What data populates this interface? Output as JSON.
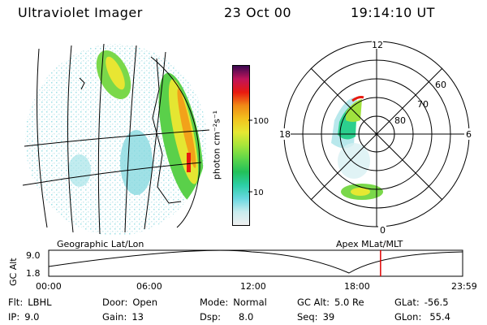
{
  "header": {
    "title": "Ultraviolet Imager",
    "date": "23 Oct 00",
    "time": "19:14:10 UT"
  },
  "colorbar": {
    "label": "photon cm⁻²s⁻¹",
    "ticks": [
      "100",
      "10"
    ],
    "colors": [
      "#f0f0f0",
      "#c8ecee",
      "#68d8e0",
      "#2ccfa6",
      "#22c05a",
      "#5ed64a",
      "#a6e63a",
      "#e6e832",
      "#f2c21e",
      "#f08a16",
      "#e81a10",
      "#c0145a",
      "#3a0850"
    ]
  },
  "geo_panel": {
    "caption": "Geographic Lat/Lon"
  },
  "polar_panel": {
    "caption": "Apex MLat/MLT",
    "mlt_labels": [
      "12",
      "18",
      "6",
      "0"
    ],
    "lat_labels": [
      "60",
      "70",
      "80"
    ]
  },
  "orbit": {
    "ylabel": "GC Alt",
    "y_ticks": [
      "9.0",
      "1.8"
    ],
    "x_ticks": [
      "00:00",
      "06:00",
      "12:00",
      "18:00",
      "23:59"
    ],
    "current_marker_color": "#e00000",
    "current_time_hours": 19.24
  },
  "info": {
    "flt_label": "Flt:",
    "flt_value": "LBHL",
    "ip_label": "IP:",
    "ip_value": "9.0",
    "door_label": "Door:",
    "door_value": "Open",
    "gain_label": "Gain:",
    "gain_value": "13",
    "mode_label": "Mode:",
    "mode_value": "Normal",
    "dsp_label": "Dsp:",
    "dsp_value": "8.0",
    "gcalt_label": "GC Alt:",
    "gcalt_value": "5.0 Re",
    "seq_label": "Seq:",
    "seq_value": "39",
    "glat_label": "GLat:",
    "glat_value": "-56.5",
    "glon_label": "GLon:",
    "glon_value": "55.4"
  }
}
